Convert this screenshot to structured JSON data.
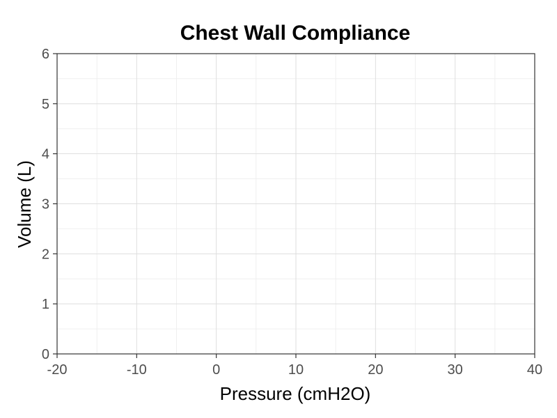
{
  "chart_data": {
    "type": "line",
    "title": "Chest Wall Compliance",
    "xlabel": "Pressure (cmH2O)",
    "ylabel": "Volume (L)",
    "xlim": [
      -20,
      40
    ],
    "ylim": [
      0,
      6
    ],
    "x_ticks": [
      -20,
      -10,
      0,
      10,
      20,
      30,
      40
    ],
    "y_ticks": [
      0,
      1,
      2,
      3,
      4,
      5,
      6
    ],
    "grid": true,
    "series": []
  }
}
